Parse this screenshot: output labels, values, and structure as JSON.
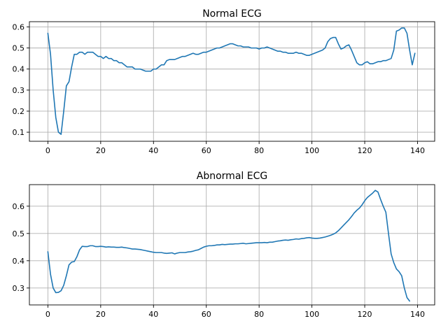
{
  "colors": {
    "line": "#1f77b4",
    "grid": "#b0b0b0",
    "axis": "#000000"
  },
  "chart_data": [
    {
      "type": "line",
      "title": "Normal ECG",
      "xlabel": "",
      "ylabel": "",
      "xlim": [
        -7,
        146.5
      ],
      "ylim": [
        0.057,
        0.625
      ],
      "xticks": [
        0,
        20,
        40,
        60,
        80,
        100,
        120,
        140
      ],
      "yticks": [
        0.1,
        0.2,
        0.3,
        0.4,
        0.5,
        0.6
      ],
      "ytick_labels": [
        "0.1",
        "0.2",
        "0.3",
        "0.4",
        "0.5",
        "0.6"
      ],
      "grid": true,
      "series": [
        {
          "values": [
            0.57,
            0.47,
            0.3,
            0.17,
            0.1,
            0.09,
            0.2,
            0.32,
            0.34,
            0.41,
            0.47,
            0.47,
            0.48,
            0.48,
            0.47,
            0.48,
            0.48,
            0.48,
            0.47,
            0.46,
            0.46,
            0.45,
            0.46,
            0.45,
            0.45,
            0.44,
            0.44,
            0.43,
            0.43,
            0.42,
            0.41,
            0.41,
            0.41,
            0.4,
            0.4,
            0.4,
            0.395,
            0.39,
            0.39,
            0.39,
            0.4,
            0.4,
            0.41,
            0.42,
            0.42,
            0.44,
            0.445,
            0.445,
            0.445,
            0.45,
            0.455,
            0.46,
            0.46,
            0.465,
            0.47,
            0.475,
            0.47,
            0.47,
            0.475,
            0.48,
            0.48,
            0.485,
            0.49,
            0.495,
            0.5,
            0.5,
            0.505,
            0.51,
            0.515,
            0.52,
            0.52,
            0.515,
            0.51,
            0.51,
            0.505,
            0.505,
            0.505,
            0.5,
            0.5,
            0.5,
            0.495,
            0.5,
            0.5,
            0.505,
            0.5,
            0.495,
            0.49,
            0.485,
            0.485,
            0.48,
            0.48,
            0.475,
            0.475,
            0.475,
            0.48,
            0.475,
            0.475,
            0.47,
            0.465,
            0.465,
            0.47,
            0.475,
            0.48,
            0.485,
            0.49,
            0.5,
            0.53,
            0.545,
            0.55,
            0.55,
            0.52,
            0.495,
            0.5,
            0.51,
            0.515,
            0.49,
            0.46,
            0.43,
            0.42,
            0.42,
            0.43,
            0.435,
            0.425,
            0.425,
            0.43,
            0.435,
            0.435,
            0.44,
            0.44,
            0.445,
            0.45,
            0.49,
            0.58,
            0.585,
            0.595,
            0.595,
            0.57,
            0.49,
            0.42,
            0.475
          ]
        }
      ]
    },
    {
      "type": "line",
      "title": "Abnormal ECG",
      "xlabel": "",
      "ylabel": "",
      "xlim": [
        -7,
        146.5
      ],
      "ylim": [
        0.238,
        0.679
      ],
      "xticks": [
        0,
        20,
        40,
        60,
        80,
        100,
        120,
        140
      ],
      "yticks": [
        0.3,
        0.4,
        0.5,
        0.6
      ],
      "ytick_labels": [
        "0.3",
        "0.4",
        "0.5",
        "0.6"
      ],
      "grid": true,
      "series": [
        {
          "values": [
            0.433,
            0.35,
            0.3,
            0.283,
            0.284,
            0.29,
            0.31,
            0.345,
            0.385,
            0.395,
            0.397,
            0.415,
            0.44,
            0.453,
            0.452,
            0.452,
            0.455,
            0.455,
            0.452,
            0.452,
            0.453,
            0.452,
            0.45,
            0.451,
            0.45,
            0.45,
            0.449,
            0.449,
            0.45,
            0.448,
            0.447,
            0.445,
            0.443,
            0.443,
            0.442,
            0.441,
            0.439,
            0.437,
            0.435,
            0.433,
            0.431,
            0.43,
            0.43,
            0.43,
            0.428,
            0.427,
            0.428,
            0.429,
            0.425,
            0.428,
            0.43,
            0.43,
            0.43,
            0.432,
            0.433,
            0.435,
            0.438,
            0.44,
            0.445,
            0.45,
            0.453,
            0.455,
            0.455,
            0.456,
            0.458,
            0.458,
            0.46,
            0.459,
            0.46,
            0.461,
            0.461,
            0.462,
            0.462,
            0.463,
            0.464,
            0.462,
            0.463,
            0.464,
            0.465,
            0.466,
            0.466,
            0.466,
            0.467,
            0.466,
            0.468,
            0.468,
            0.47,
            0.472,
            0.473,
            0.475,
            0.476,
            0.475,
            0.477,
            0.478,
            0.48,
            0.479,
            0.481,
            0.482,
            0.484,
            0.485,
            0.483,
            0.482,
            0.482,
            0.483,
            0.485,
            0.487,
            0.49,
            0.493,
            0.497,
            0.502,
            0.51,
            0.52,
            0.53,
            0.54,
            0.55,
            0.562,
            0.575,
            0.585,
            0.593,
            0.605,
            0.62,
            0.632,
            0.64,
            0.648,
            0.658,
            0.652,
            0.625,
            0.6,
            0.578,
            0.5,
            0.425,
            0.393,
            0.37,
            0.36,
            0.345,
            0.3,
            0.265,
            0.252
          ]
        }
      ]
    }
  ]
}
